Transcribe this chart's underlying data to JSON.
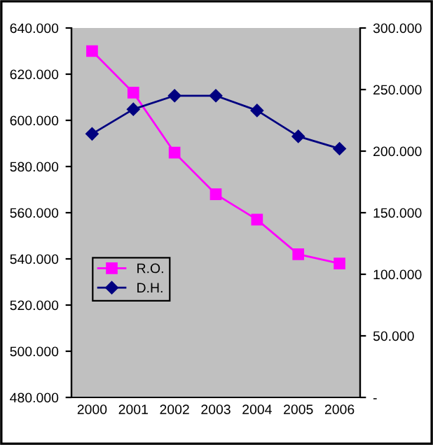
{
  "chart_data": {
    "type": "line",
    "categories": [
      "2000",
      "2001",
      "2002",
      "2003",
      "2004",
      "2005",
      "2006"
    ],
    "series": [
      {
        "name": "R.O.",
        "color": "#ff00ff",
        "marker": "square",
        "values": [
          630000,
          612000,
          586000,
          568000,
          557000,
          542000,
          538000
        ]
      },
      {
        "name": "D.H.",
        "color": "#000080",
        "marker": "diamond",
        "axis": "y2",
        "values": [
          214000,
          234000,
          245000,
          245000,
          233000,
          212000,
          202000
        ]
      }
    ],
    "ylim": [
      480000,
      640000
    ],
    "yticks": [
      {
        "value": 480000,
        "label": "480.000"
      },
      {
        "value": 500000,
        "label": "500.000"
      },
      {
        "value": 520000,
        "label": "520.000"
      },
      {
        "value": 540000,
        "label": "540.000"
      },
      {
        "value": 560000,
        "label": "560.000"
      },
      {
        "value": 580000,
        "label": "580.000"
      },
      {
        "value": 600000,
        "label": "600.000"
      },
      {
        "value": 620000,
        "label": "620.000"
      },
      {
        "value": 640000,
        "label": "640.000"
      }
    ],
    "y2lim": [
      0,
      300000
    ],
    "y2ticks": [
      {
        "value": 0,
        "label": "-"
      },
      {
        "value": 50000,
        "label": "50.000"
      },
      {
        "value": 100000,
        "label": "100.000"
      },
      {
        "value": 150000,
        "label": "150.000"
      },
      {
        "value": 200000,
        "label": "200.000"
      },
      {
        "value": 250000,
        "label": "250.000"
      },
      {
        "value": 300000,
        "label": "300.000"
      }
    ],
    "legend": "left",
    "grid": false,
    "line_style": "solid"
  }
}
